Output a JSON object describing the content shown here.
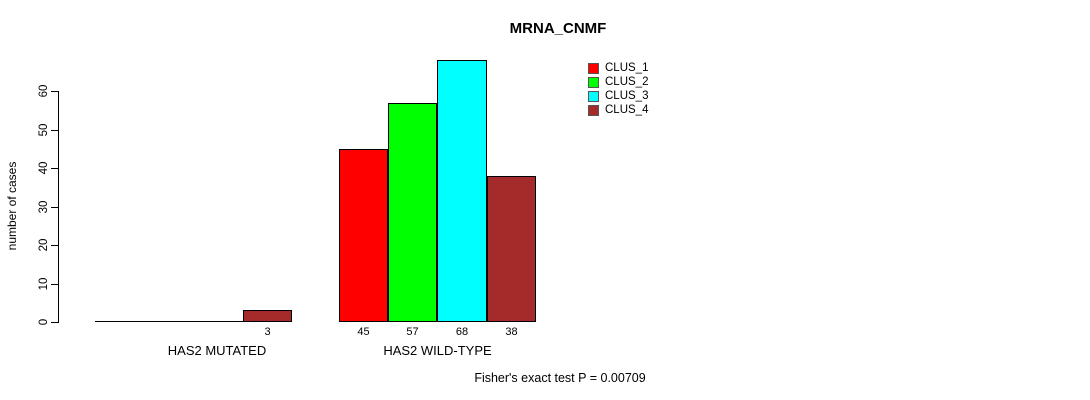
{
  "chart_data": {
    "type": "bar",
    "title": "MRNA_CNMF",
    "ylabel": "number of cases",
    "xlabel": "",
    "ylim": [
      0,
      68
    ],
    "yticks": [
      0,
      10,
      20,
      30,
      40,
      50,
      60
    ],
    "grid": false,
    "legend_position": "inside-top-right",
    "categories": [
      "HAS2 MUTATED",
      "HAS2 WILD-TYPE"
    ],
    "series": [
      {
        "name": "CLUS_1",
        "color": "#ff0000",
        "values": [
          0,
          45
        ]
      },
      {
        "name": "CLUS_2",
        "color": "#00ff00",
        "values": [
          0,
          57
        ]
      },
      {
        "name": "CLUS_3",
        "color": "#00ffff",
        "values": [
          0,
          68
        ]
      },
      {
        "name": "CLUS_4",
        "color": "#a52a2a",
        "values": [
          3,
          38
        ]
      }
    ],
    "bar_value_labels": [
      [
        null,
        null,
        null,
        "3"
      ],
      [
        "45",
        "57",
        "68",
        "38"
      ]
    ],
    "footnote": "Fisher's exact test P = 0.00709"
  }
}
